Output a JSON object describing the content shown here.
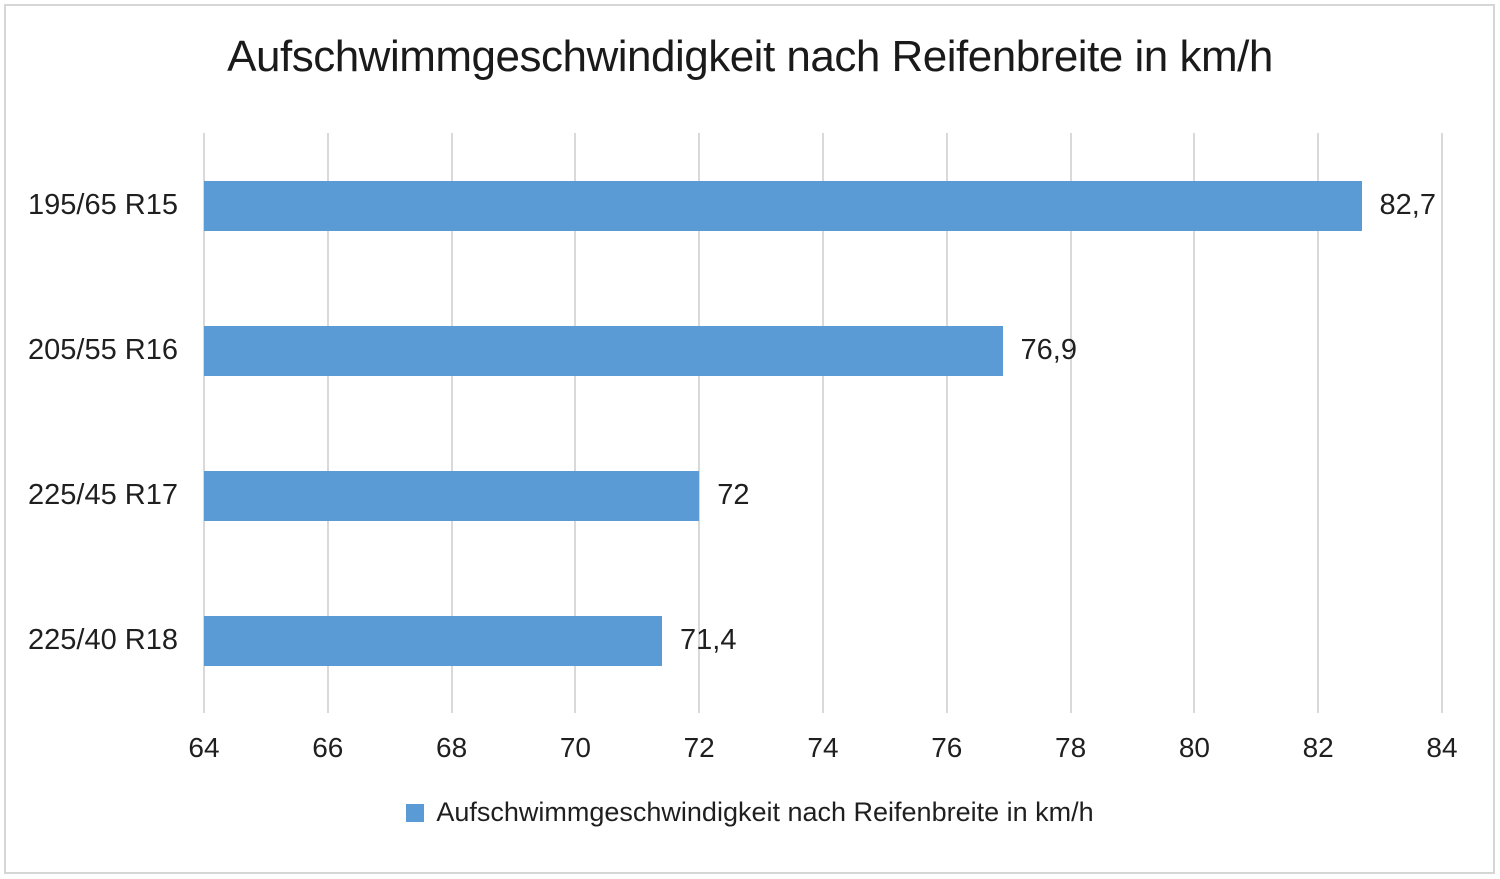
{
  "chart_data": {
    "type": "bar",
    "orientation": "horizontal",
    "title": "Aufschwimmgeschwindigkeit nach Reifenbreite in km/h",
    "categories": [
      "195/65 R15",
      "205/55 R16",
      "225/45 R17",
      "225/40 R18"
    ],
    "values": [
      82.7,
      76.9,
      72,
      71.4
    ],
    "value_labels": [
      "82,7",
      "76,9",
      "72",
      "71,4"
    ],
    "xlim": [
      64,
      84
    ],
    "x_ticks": [
      "64",
      "66",
      "68",
      "70",
      "72",
      "74",
      "76",
      "78",
      "80",
      "82",
      "84"
    ],
    "grid": "vertical-only",
    "legend": {
      "position": "bottom",
      "marker": "square",
      "label": "Aufschwimmgeschwindigkeit nach Reifenbreite in km/h"
    },
    "colors": {
      "bar": "#5B9BD5",
      "gridline": "#D9D9D9",
      "text": "#1F1F1F",
      "border": "#D6D6D6",
      "background": "#FFFFFF"
    }
  }
}
